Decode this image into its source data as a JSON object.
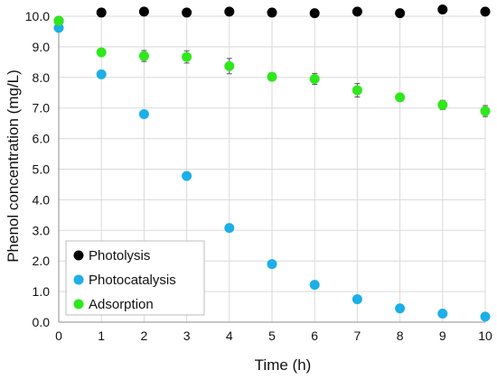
{
  "chart_data": {
    "type": "scatter",
    "xlabel": "Time (h)",
    "ylabel": "Phenol concentration (mg/L)",
    "xlim": [
      0,
      10
    ],
    "ylim": [
      0,
      10
    ],
    "x_ticks": [
      "0",
      "1",
      "2",
      "3",
      "4",
      "5",
      "6",
      "7",
      "8",
      "9",
      "10"
    ],
    "y_ticks": [
      "0.0",
      "1.0",
      "2.0",
      "3.0",
      "4.0",
      "5.0",
      "6.0",
      "7.0",
      "8.0",
      "9.0",
      "10.0"
    ],
    "grid": true,
    "legend_position": "bottom-left",
    "series": [
      {
        "name": "Photolysis",
        "color": "#000000",
        "x": [
          0,
          1,
          2,
          3,
          4,
          5,
          6,
          7,
          8,
          9,
          10
        ],
        "y": [
          9.85,
          10.12,
          10.15,
          10.12,
          10.15,
          10.12,
          10.1,
          10.15,
          10.1,
          10.22,
          10.15
        ],
        "error": [
          0,
          0,
          0,
          0,
          0,
          0,
          0,
          0,
          0,
          0,
          0
        ]
      },
      {
        "name": "Photocatalysis",
        "color": "#1cafe8",
        "x": [
          0,
          1,
          2,
          3,
          4,
          5,
          6,
          7,
          8,
          9,
          10
        ],
        "y": [
          9.62,
          8.1,
          6.8,
          4.78,
          3.08,
          1.9,
          1.22,
          0.75,
          0.45,
          0.28,
          0.18
        ],
        "error": [
          0,
          0,
          0,
          0,
          0,
          0,
          0,
          0,
          0,
          0,
          0
        ]
      },
      {
        "name": "Adsorption",
        "color": "#2ee81c",
        "x": [
          0,
          1,
          2,
          3,
          4,
          5,
          6,
          7,
          8,
          9,
          10
        ],
        "y": [
          9.85,
          8.82,
          8.7,
          8.67,
          8.37,
          8.02,
          7.95,
          7.58,
          7.35,
          7.1,
          6.9
        ],
        "error": [
          0,
          0.08,
          0.18,
          0.2,
          0.25,
          0.12,
          0.18,
          0.22,
          0.08,
          0.15,
          0.18
        ]
      }
    ]
  }
}
